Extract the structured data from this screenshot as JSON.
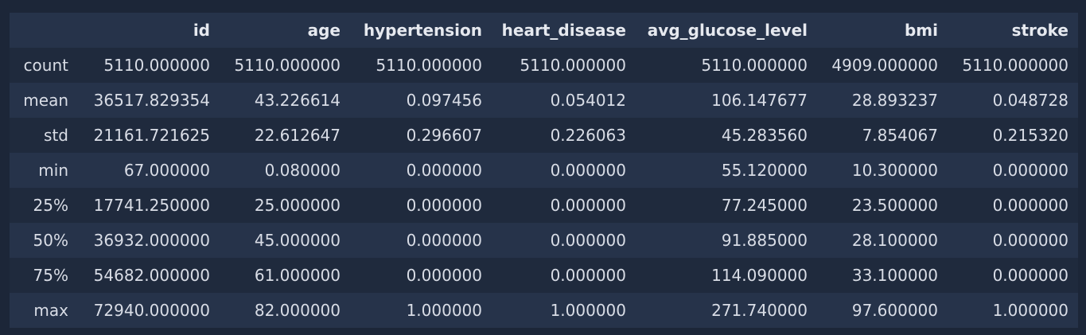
{
  "table": {
    "columns": [
      "id",
      "age",
      "hypertension",
      "heart_disease",
      "avg_glucose_level",
      "bmi",
      "stroke"
    ],
    "rows": [
      {
        "label": "count",
        "values": [
          "5110.000000",
          "5110.000000",
          "5110.000000",
          "5110.000000",
          "5110.000000",
          "4909.000000",
          "5110.000000"
        ]
      },
      {
        "label": "mean",
        "values": [
          "36517.829354",
          "43.226614",
          "0.097456",
          "0.054012",
          "106.147677",
          "28.893237",
          "0.048728"
        ]
      },
      {
        "label": "std",
        "values": [
          "21161.721625",
          "22.612647",
          "0.296607",
          "0.226063",
          "45.283560",
          "7.854067",
          "0.215320"
        ]
      },
      {
        "label": "min",
        "values": [
          "67.000000",
          "0.080000",
          "0.000000",
          "0.000000",
          "55.120000",
          "10.300000",
          "0.000000"
        ]
      },
      {
        "label": "25%",
        "values": [
          "17741.250000",
          "25.000000",
          "0.000000",
          "0.000000",
          "77.245000",
          "23.500000",
          "0.000000"
        ]
      },
      {
        "label": "50%",
        "values": [
          "36932.000000",
          "45.000000",
          "0.000000",
          "0.000000",
          "91.885000",
          "28.100000",
          "0.000000"
        ]
      },
      {
        "label": "75%",
        "values": [
          "54682.000000",
          "61.000000",
          "0.000000",
          "0.000000",
          "114.090000",
          "33.100000",
          "0.000000"
        ]
      },
      {
        "label": "max",
        "values": [
          "72940.000000",
          "82.000000",
          "1.000000",
          "1.000000",
          "271.740000",
          "97.600000",
          "1.000000"
        ]
      }
    ]
  },
  "colors": {
    "background": "#1c2638",
    "header_row": "#26334a",
    "row_odd": "#1f2a3d",
    "row_even": "#26334a",
    "text": "#d9dde6"
  }
}
